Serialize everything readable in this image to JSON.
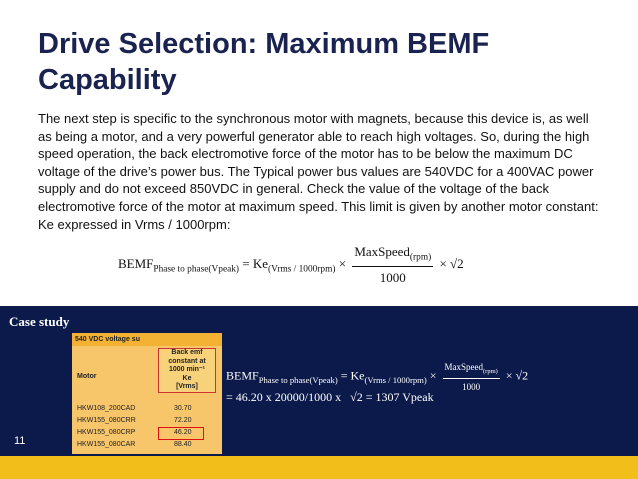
{
  "title": [
    "Drive Selection: Maximum BEMF",
    "Capability"
  ],
  "paragraph": "The next step is specific to the synchronous motor with magnets, because this device is, as well as being a motor, and a very powerful generator able to reach high voltages. So, during the high speed operation, the back electromotive force of the motor has to be below the maximum DC voltage of the drive’s power bus. The Typical power bus values are 540VDC for a 400VAC power supply and do not exceed 850VDC in general. Check the value of the voltage of the back electromotive force of the motor at maximum speed. This limit is given by another motor constant: Ke expressed in Vrms / 1000rpm:",
  "formula": {
    "lhs": "BEMF",
    "lhs_sub": "Phase to phase(Vpeak)",
    "eq": "= Ke",
    "ke_sub": "(Vrms / 1000rpm)",
    "times": "×",
    "num": "MaxSpeed",
    "num_sub": "(rpm)",
    "den": "1000",
    "tail": "× √2"
  },
  "case_study": "Case study",
  "table": {
    "header": "540 VDC voltage su",
    "motor_header": "Motor",
    "ke_header": [
      "Back emf",
      "constant at",
      "1000 min⁻¹",
      "Ke",
      "[Vrms]"
    ],
    "rows": [
      [
        "HKW108_200CAD",
        "30.70"
      ],
      [
        "HKW155_080CRR",
        "72.20"
      ],
      [
        "HKW155_080CRP",
        "46.20"
      ],
      [
        "HKW155_080CAR",
        "88.40"
      ]
    ]
  },
  "calculation": {
    "line1": "= 46.20 x 20000/1000 x",
    "line2": "√2 = 1307 Vpeak"
  },
  "page_number": "11"
}
